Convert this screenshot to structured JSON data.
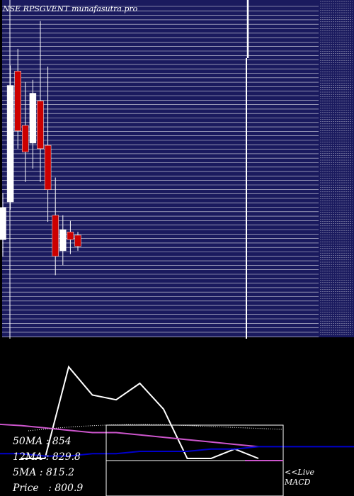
{
  "chart_data": [
    {
      "type": "candlestick",
      "title": "NSE RPSGVENT munafasutra.pro",
      "candles": [
        {
          "open": 808,
          "close": 837,
          "high": 850,
          "low": 793,
          "color": "white"
        },
        {
          "open": 842,
          "close": 947,
          "high": 965,
          "low": 835,
          "color": "white"
        },
        {
          "open": 960,
          "close": 906,
          "high": 980,
          "low": 890,
          "color": "red"
        },
        {
          "open": 911,
          "close": 887,
          "high": 950,
          "low": 860,
          "color": "red"
        },
        {
          "open": 895,
          "close": 940,
          "high": 952,
          "low": 872,
          "color": "white"
        },
        {
          "open": 933,
          "close": 890,
          "high": 1005,
          "low": 860,
          "color": "red"
        },
        {
          "open": 893,
          "close": 853,
          "high": 964,
          "low": 824,
          "color": "red"
        },
        {
          "open": 830,
          "close": 793,
          "high": 864,
          "low": 776,
          "color": "red"
        },
        {
          "open": 817,
          "close": 798,
          "high": 830,
          "low": 785,
          "color": "white"
        },
        {
          "open": 815,
          "close": 808,
          "high": 825,
          "low": 795,
          "color": "red"
        },
        {
          "open": 812,
          "close": 802,
          "high": 815,
          "low": 798,
          "color": "red"
        }
      ]
    },
    {
      "type": "line",
      "title": "MACD",
      "series": [
        {
          "color": "#ffffff",
          "values": [
            -1.3,
            -1.3,
            2.6,
            1.4,
            1.2,
            1.9,
            0.8,
            -1.3,
            -1.3,
            -0.9,
            -1.3
          ]
        },
        {
          "color": "#cc55cc",
          "values": [
            0.1,
            0.0,
            -0.1,
            -0.2,
            -0.2,
            -0.3,
            -0.4,
            -0.5,
            -0.6,
            -0.7,
            -0.8
          ]
        },
        {
          "color": "#0000cc",
          "values": [
            -1.1,
            -1.2,
            -1.2,
            -1.1,
            -1.1,
            -1.0,
            -1.0,
            -1.0,
            -0.9,
            -0.9,
            -0.8
          ]
        }
      ]
    }
  ],
  "ma": {
    "ma50": "50MA : 854",
    "ma12": "12MA : 829.8",
    "ma5": "5MA : 815.2",
    "price": "Price   : 800.9"
  },
  "live_label": "<<Live",
  "macd_label": "MACD",
  "colors": {
    "panel_bg": "#1a1a5e",
    "grid": "#ffffff",
    "bull": "#ffffff",
    "bear": "#cc0000",
    "signal": "#cc55cc",
    "blue": "#0000cc"
  }
}
